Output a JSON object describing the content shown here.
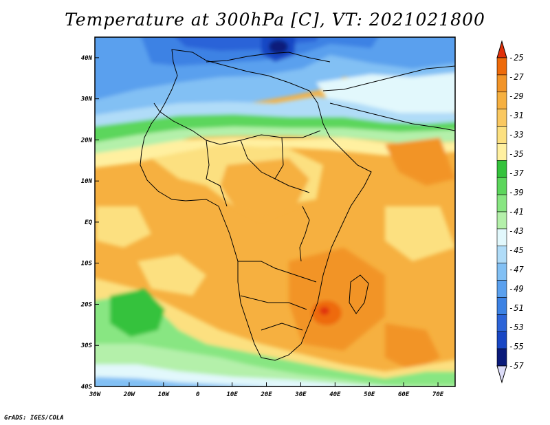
{
  "title": "Temperature at 300hPa [C], VT: 2021021800",
  "credit": "GrADS: IGES/COLA",
  "colors": {
    "levels": [
      "#dcdcf8",
      "#0a1a7a",
      "#1846c4",
      "#2c64d8",
      "#3c82e4",
      "#5aa0ee",
      "#82c0f4",
      "#b0dcf8",
      "#e2f8fc",
      "#b4f0aa",
      "#88e682",
      "#5cd65c",
      "#34c23c",
      "#fff0a0",
      "#fce080",
      "#fac860",
      "#f6b040",
      "#f29428",
      "#ee6a0a",
      "#e0300a"
    ]
  },
  "map": {
    "lon_range": [
      -30,
      75
    ],
    "lat_range": [
      -40,
      45
    ],
    "x_ticks": [
      "30W",
      "20W",
      "10W",
      "0",
      "10E",
      "20E",
      "30E",
      "40E",
      "50E",
      "60E",
      "70E"
    ],
    "y_ticks": [
      "40S",
      "30S",
      "20S",
      "10S",
      "EQ",
      "10N",
      "20N",
      "30N",
      "40N"
    ]
  },
  "colorbar": {
    "labels": [
      "-25",
      "-27",
      "-29",
      "-31",
      "-33",
      "-35",
      "-37",
      "-39",
      "-41",
      "-43",
      "-45",
      "-47",
      "-49",
      "-51",
      "-53",
      "-55",
      "-57"
    ]
  }
}
